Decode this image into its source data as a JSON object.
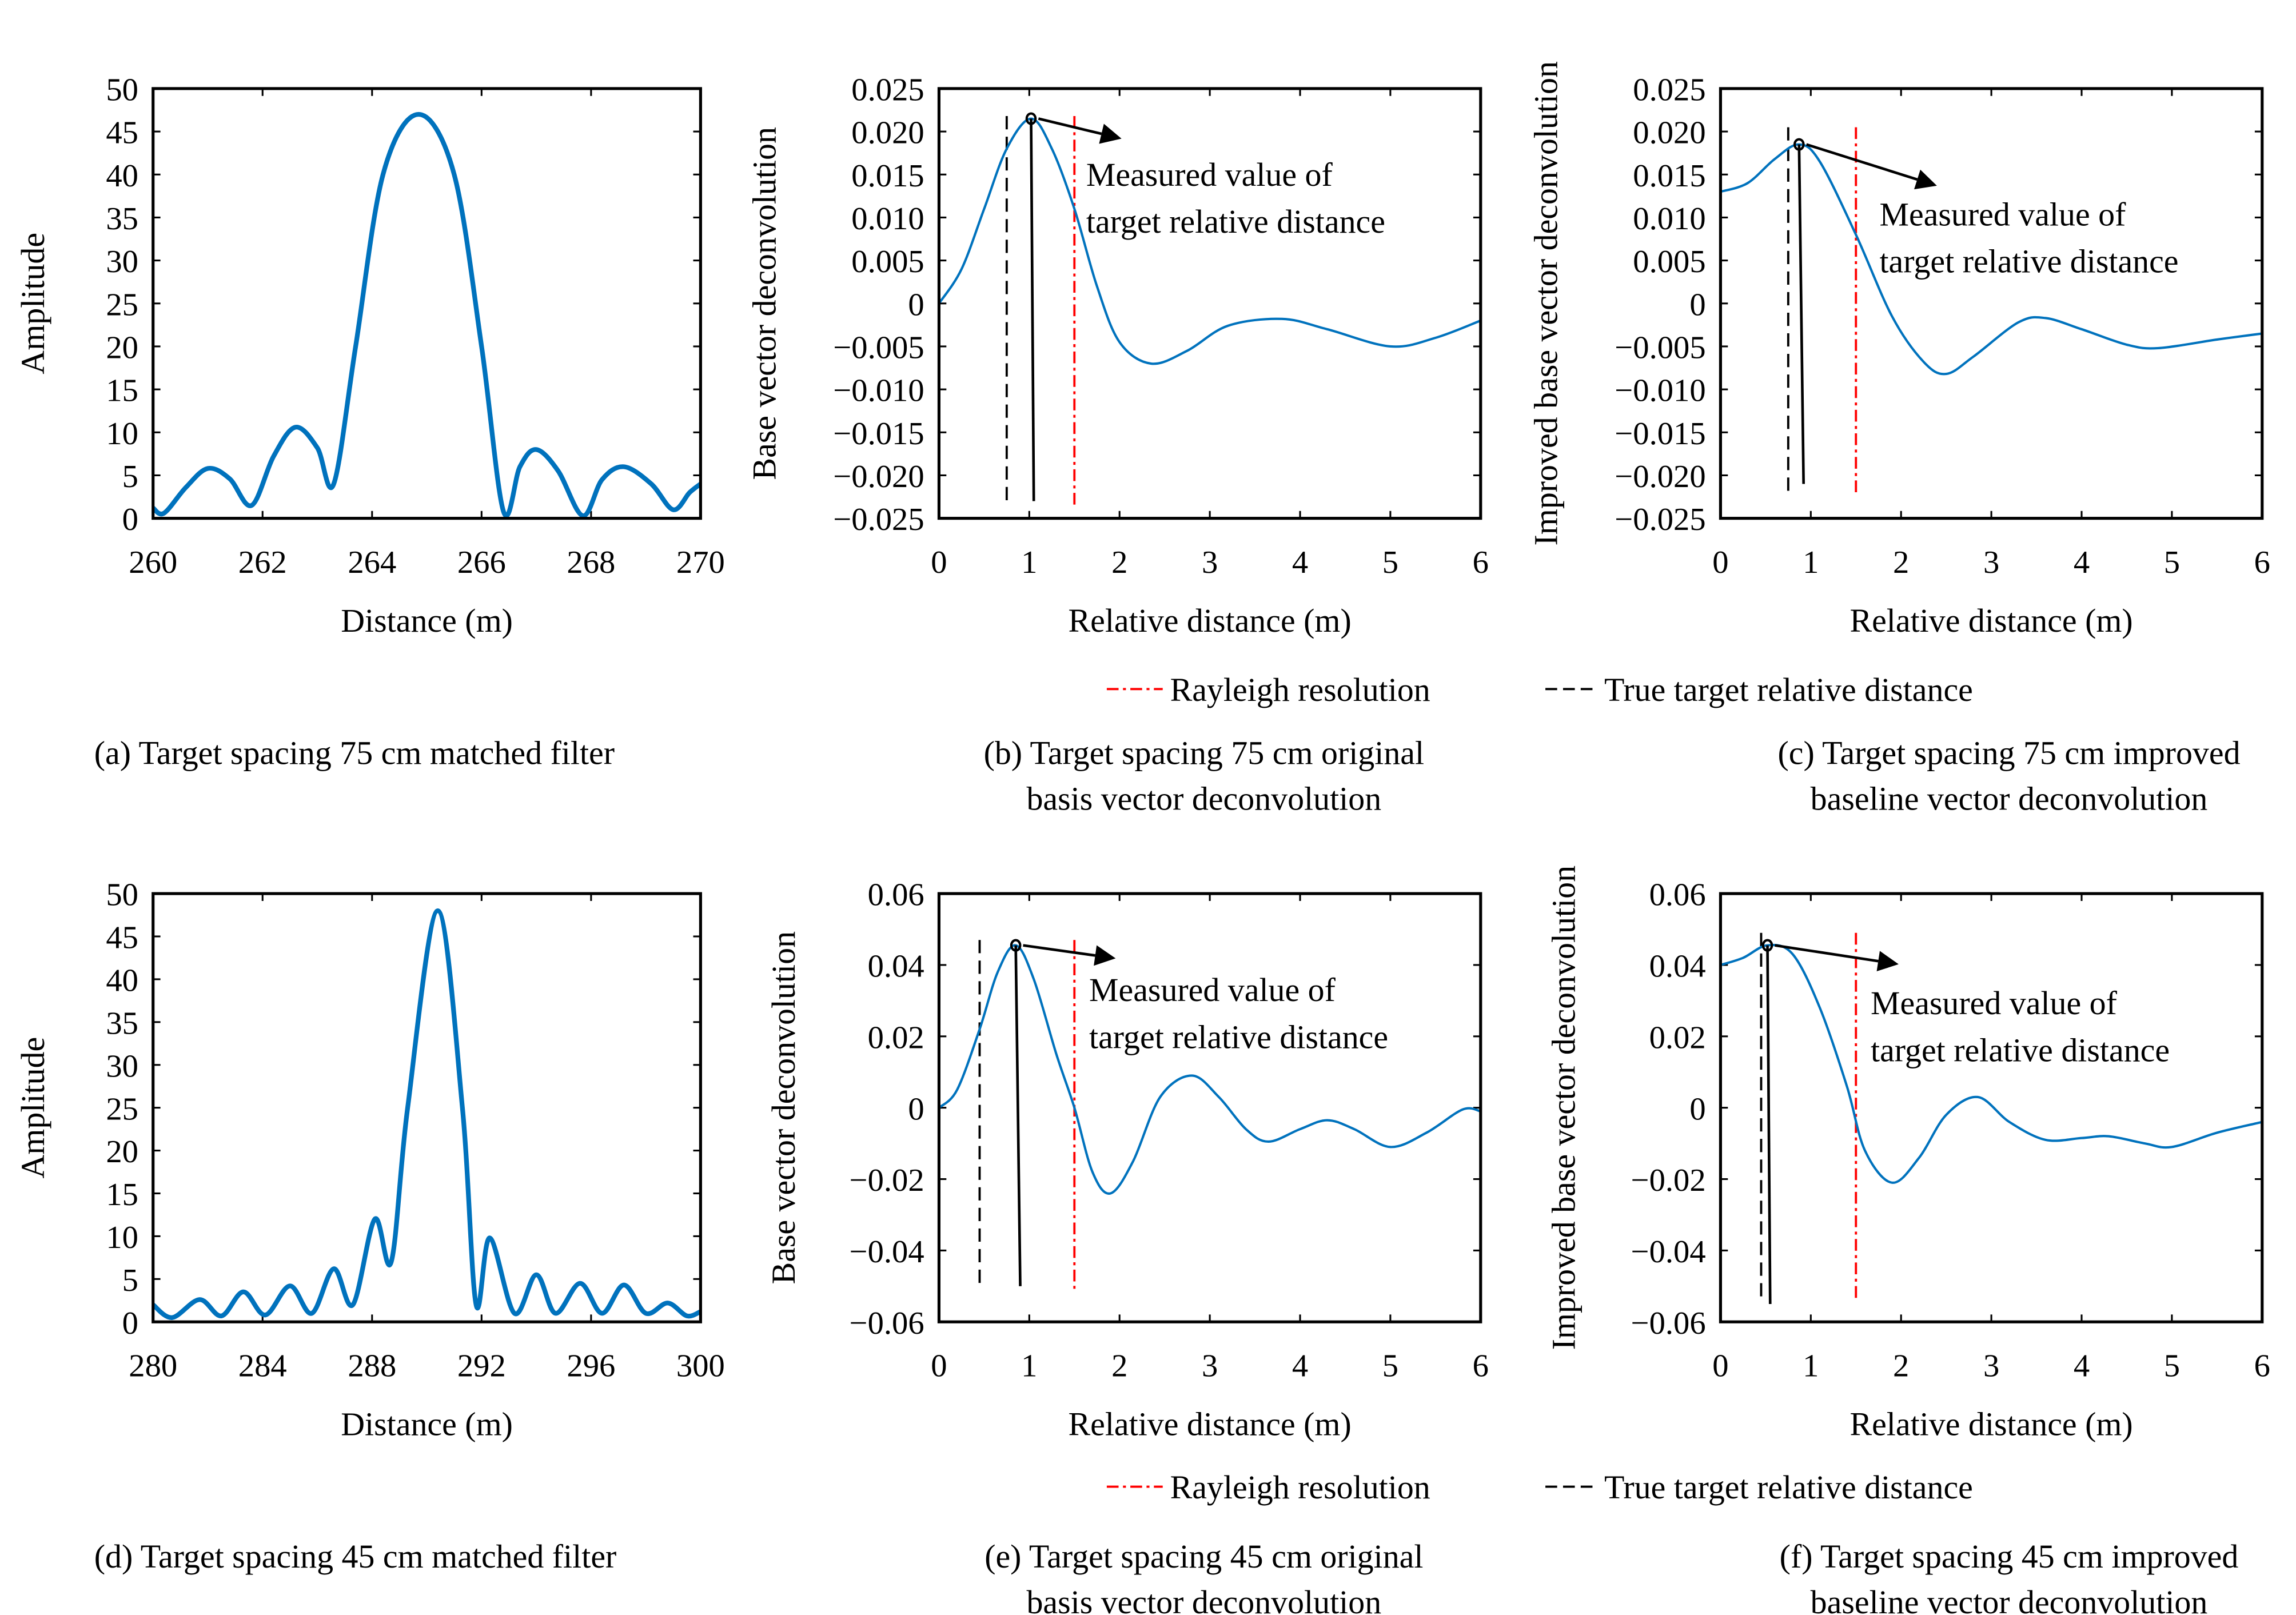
{
  "colors": {
    "curve": "#0072bd",
    "rayleigh": "#ff0000",
    "true_distance": "#000000",
    "axes": "#000000"
  },
  "legend": {
    "rayleigh": "Rayleigh resolution",
    "true_distance": "True target relative distance"
  },
  "annotation": {
    "line1": "Measured value of",
    "line2": "target relative distance"
  },
  "chart_data": [
    {
      "id": "a",
      "type": "line",
      "caption": [
        "(a) Target spacing 75 cm matched filter"
      ],
      "xlabel": "Distance (m)",
      "ylabel": "Amplitude",
      "xlim": [
        260,
        270
      ],
      "ylim": [
        0,
        50
      ],
      "xticks": [
        260,
        262,
        264,
        266,
        268,
        270
      ],
      "xtick_labels": [
        "260",
        "262",
        "264",
        "266",
        "268",
        "270"
      ],
      "yticks": [
        0,
        5,
        10,
        15,
        20,
        25,
        30,
        35,
        40,
        45,
        50
      ],
      "ytick_labels": [
        "0",
        "5",
        "10",
        "15",
        "20",
        "25",
        "30",
        "35",
        "40",
        "45",
        "50"
      ],
      "grid": false,
      "points": [
        [
          260,
          1.2
        ],
        [
          260.2,
          0.6
        ],
        [
          260.6,
          3.6
        ],
        [
          261,
          5.8
        ],
        [
          261.4,
          4.6
        ],
        [
          261.8,
          1.5
        ],
        [
          262.2,
          7.2
        ],
        [
          262.6,
          10.6
        ],
        [
          263,
          8.2
        ],
        [
          263.3,
          4
        ],
        [
          263.7,
          20
        ],
        [
          264.2,
          40
        ],
        [
          264.85,
          47
        ],
        [
          265.5,
          40
        ],
        [
          266,
          20
        ],
        [
          266.4,
          0.8
        ],
        [
          266.7,
          6
        ],
        [
          267,
          8
        ],
        [
          267.4,
          5.5
        ],
        [
          267.85,
          0.3
        ],
        [
          268.2,
          4.5
        ],
        [
          268.6,
          6
        ],
        [
          269.1,
          4
        ],
        [
          269.5,
          1
        ],
        [
          269.8,
          3
        ],
        [
          270,
          4
        ]
      ]
    },
    {
      "id": "b",
      "type": "line",
      "caption": [
        "(b) Target spacing 75 cm original",
        "basis vector deconvolution"
      ],
      "xlabel": "Relative distance (m)",
      "ylabel": "Base vector deconvolution",
      "xlim": [
        0,
        6
      ],
      "ylim": [
        -0.025,
        0.025
      ],
      "xticks": [
        0,
        1,
        2,
        3,
        4,
        5,
        6
      ],
      "xtick_labels": [
        "0",
        "1",
        "2",
        "3",
        "4",
        "5",
        "6"
      ],
      "yticks": [
        -0.025,
        -0.02,
        -0.015,
        -0.01,
        -0.005,
        0,
        0.005,
        0.01,
        0.015,
        0.02,
        0.025
      ],
      "ytick_labels": [
        "−0.025",
        "−0.020",
        "−0.015",
        "−0.010",
        "−0.005",
        "0",
        "0.005",
        "0.010",
        "0.015",
        "0.020",
        "0.025"
      ],
      "grid": false,
      "points": [
        [
          0,
          0
        ],
        [
          0.25,
          0.004
        ],
        [
          0.5,
          0.011
        ],
        [
          0.75,
          0.018
        ],
        [
          1.02,
          0.0215
        ],
        [
          1.25,
          0.018
        ],
        [
          1.5,
          0.011
        ],
        [
          1.75,
          0.002
        ],
        [
          2.0,
          -0.0045
        ],
        [
          2.35,
          -0.007
        ],
        [
          2.75,
          -0.0055
        ],
        [
          3.2,
          -0.0026
        ],
        [
          3.8,
          -0.0018
        ],
        [
          4.3,
          -0.003
        ],
        [
          5.0,
          -0.005
        ],
        [
          5.5,
          -0.004
        ],
        [
          6,
          -0.002
        ]
      ],
      "true_distance": 0.75,
      "rayleigh": 1.5,
      "measured": [
        1.02,
        0.0215
      ],
      "marker_stem_end": [
        1.05,
        -0.023
      ],
      "line_bottom": -0.0235,
      "line_top": 0.0218
    },
    {
      "id": "c",
      "type": "line",
      "caption": [
        "(c) Target spacing 75 cm improved",
        "baseline vector deconvolution"
      ],
      "xlabel": "Relative distance (m)",
      "ylabel": "Improved base vector deconvolution",
      "xlim": [
        0,
        6
      ],
      "ylim": [
        -0.025,
        0.025
      ],
      "xticks": [
        0,
        1,
        2,
        3,
        4,
        5,
        6
      ],
      "xtick_labels": [
        "0",
        "1",
        "2",
        "3",
        "4",
        "5",
        "6"
      ],
      "yticks": [
        -0.025,
        -0.02,
        -0.015,
        -0.01,
        -0.005,
        0,
        0.005,
        0.01,
        0.015,
        0.02,
        0.025
      ],
      "ytick_labels": [
        "−0.025",
        "−0.020",
        "−0.015",
        "−0.010",
        "−0.005",
        "0",
        "0.005",
        "0.010",
        "0.015",
        "0.020",
        "0.025"
      ],
      "grid": false,
      "points": [
        [
          0,
          0.013
        ],
        [
          0.3,
          0.014
        ],
        [
          0.6,
          0.0168
        ],
        [
          0.87,
          0.0185
        ],
        [
          1.1,
          0.0165
        ],
        [
          1.5,
          0.008
        ],
        [
          1.9,
          -0.0015
        ],
        [
          2.25,
          -0.0068
        ],
        [
          2.5,
          -0.0082
        ],
        [
          2.8,
          -0.0062
        ],
        [
          3.3,
          -0.0022
        ],
        [
          3.6,
          -0.0017
        ],
        [
          4.0,
          -0.003
        ],
        [
          4.5,
          -0.0048
        ],
        [
          4.85,
          -0.0052
        ],
        [
          5.5,
          -0.0042
        ],
        [
          6,
          -0.0035
        ]
      ],
      "true_distance": 0.75,
      "rayleigh": 1.5,
      "measured": [
        0.87,
        0.0185
      ],
      "marker_stem_end": [
        0.92,
        -0.021
      ],
      "line_bottom": -0.0222,
      "line_top": 0.0205
    },
    {
      "id": "d",
      "type": "line",
      "caption": [
        "(d) Target spacing 45 cm matched filter"
      ],
      "xlabel": "Distance (m)",
      "ylabel": "Amplitude",
      "xlim": [
        280,
        300
      ],
      "ylim": [
        0,
        50
      ],
      "xticks": [
        280,
        284,
        288,
        292,
        296,
        300
      ],
      "xtick_labels": [
        "280",
        "284",
        "288",
        "292",
        "296",
        "300"
      ],
      "yticks": [
        0,
        5,
        10,
        15,
        20,
        25,
        30,
        35,
        40,
        45,
        50
      ],
      "ytick_labels": [
        "0",
        "5",
        "10",
        "15",
        "20",
        "25",
        "30",
        "35",
        "40",
        "45",
        "50"
      ],
      "grid": false,
      "points": [
        [
          280,
          2
        ],
        [
          280.7,
          0.5
        ],
        [
          281.7,
          2.6
        ],
        [
          282.5,
          0.7
        ],
        [
          283.3,
          3.5
        ],
        [
          284.1,
          0.8
        ],
        [
          285,
          4.2
        ],
        [
          285.8,
          1
        ],
        [
          286.6,
          6.2
        ],
        [
          287.3,
          2
        ],
        [
          288.1,
          12
        ],
        [
          288.7,
          7
        ],
        [
          289.3,
          25
        ],
        [
          290.4,
          48
        ],
        [
          291.3,
          25
        ],
        [
          291.8,
          2
        ],
        [
          292.3,
          9.8
        ],
        [
          293.2,
          1
        ],
        [
          294,
          5.5
        ],
        [
          294.7,
          1
        ],
        [
          295.6,
          4.5
        ],
        [
          296.4,
          1
        ],
        [
          297.2,
          4.3
        ],
        [
          298,
          1
        ],
        [
          298.8,
          2.2
        ],
        [
          299.5,
          0.7
        ],
        [
          300,
          1.2
        ]
      ]
    },
    {
      "id": "e",
      "type": "line",
      "caption": [
        "(e) Target spacing 45 cm original",
        "basis vector deconvolution"
      ],
      "xlabel": "Relative distance (m)",
      "ylabel": "Base vector deconvolution",
      "xlim": [
        0,
        6
      ],
      "ylim": [
        -0.06,
        0.06
      ],
      "xticks": [
        0,
        1,
        2,
        3,
        4,
        5,
        6
      ],
      "xtick_labels": [
        "0",
        "1",
        "2",
        "3",
        "4",
        "5",
        "6"
      ],
      "yticks": [
        -0.06,
        -0.04,
        -0.02,
        0,
        0.02,
        0.04,
        0.06
      ],
      "ytick_labels": [
        "−0.06",
        "−0.04",
        "−0.02",
        "0",
        "0.02",
        "0.04",
        "0.06"
      ],
      "grid": false,
      "points": [
        [
          0,
          0
        ],
        [
          0.2,
          0.005
        ],
        [
          0.45,
          0.022
        ],
        [
          0.65,
          0.038
        ],
        [
          0.85,
          0.0455
        ],
        [
          1.05,
          0.036
        ],
        [
          1.3,
          0.015
        ],
        [
          1.5,
          0
        ],
        [
          1.7,
          -0.018
        ],
        [
          1.9,
          -0.024
        ],
        [
          2.15,
          -0.015
        ],
        [
          2.45,
          0.003
        ],
        [
          2.8,
          0.009
        ],
        [
          3.1,
          0.003
        ],
        [
          3.4,
          -0.006
        ],
        [
          3.65,
          -0.0095
        ],
        [
          4.0,
          -0.006
        ],
        [
          4.3,
          -0.0035
        ],
        [
          4.6,
          -0.006
        ],
        [
          5.0,
          -0.011
        ],
        [
          5.4,
          -0.007
        ],
        [
          5.8,
          -0.0005
        ],
        [
          6,
          -0.001
        ]
      ],
      "true_distance": 0.45,
      "rayleigh": 1.5,
      "measured": [
        0.85,
        0.0455
      ],
      "marker_stem_end": [
        0.9,
        -0.05
      ],
      "line_bottom": -0.051,
      "line_top": 0.047
    },
    {
      "id": "f",
      "type": "line",
      "caption": [
        "(f) Target spacing 45 cm improved",
        "baseline vector deconvolution"
      ],
      "xlabel": "Relative distance (m)",
      "ylabel": "Improved base vector deconvolution",
      "xlim": [
        0,
        6
      ],
      "ylim": [
        -0.06,
        0.06
      ],
      "xticks": [
        0,
        1,
        2,
        3,
        4,
        5,
        6
      ],
      "xtick_labels": [
        "0",
        "1",
        "2",
        "3",
        "4",
        "5",
        "6"
      ],
      "yticks": [
        -0.06,
        -0.04,
        -0.02,
        0,
        0.02,
        0.04,
        0.06
      ],
      "ytick_labels": [
        "−0.06",
        "−0.04",
        "−0.02",
        "0",
        "0.02",
        "0.04",
        "0.06"
      ],
      "grid": false,
      "points": [
        [
          0,
          0.04
        ],
        [
          0.25,
          0.042
        ],
        [
          0.52,
          0.0455
        ],
        [
          0.8,
          0.043
        ],
        [
          1.1,
          0.028
        ],
        [
          1.4,
          0.006
        ],
        [
          1.6,
          -0.012
        ],
        [
          1.9,
          -0.021
        ],
        [
          2.2,
          -0.014
        ],
        [
          2.5,
          -0.002
        ],
        [
          2.85,
          0.003
        ],
        [
          3.2,
          -0.004
        ],
        [
          3.6,
          -0.009
        ],
        [
          4.0,
          -0.0085
        ],
        [
          4.3,
          -0.008
        ],
        [
          4.7,
          -0.01
        ],
        [
          5.0,
          -0.011
        ],
        [
          5.5,
          -0.007
        ],
        [
          6,
          -0.004
        ]
      ],
      "true_distance": 0.45,
      "rayleigh": 1.5,
      "measured": [
        0.52,
        0.0455
      ],
      "marker_stem_end": [
        0.55,
        -0.055
      ],
      "line_bottom": -0.054,
      "line_top": 0.049
    }
  ]
}
